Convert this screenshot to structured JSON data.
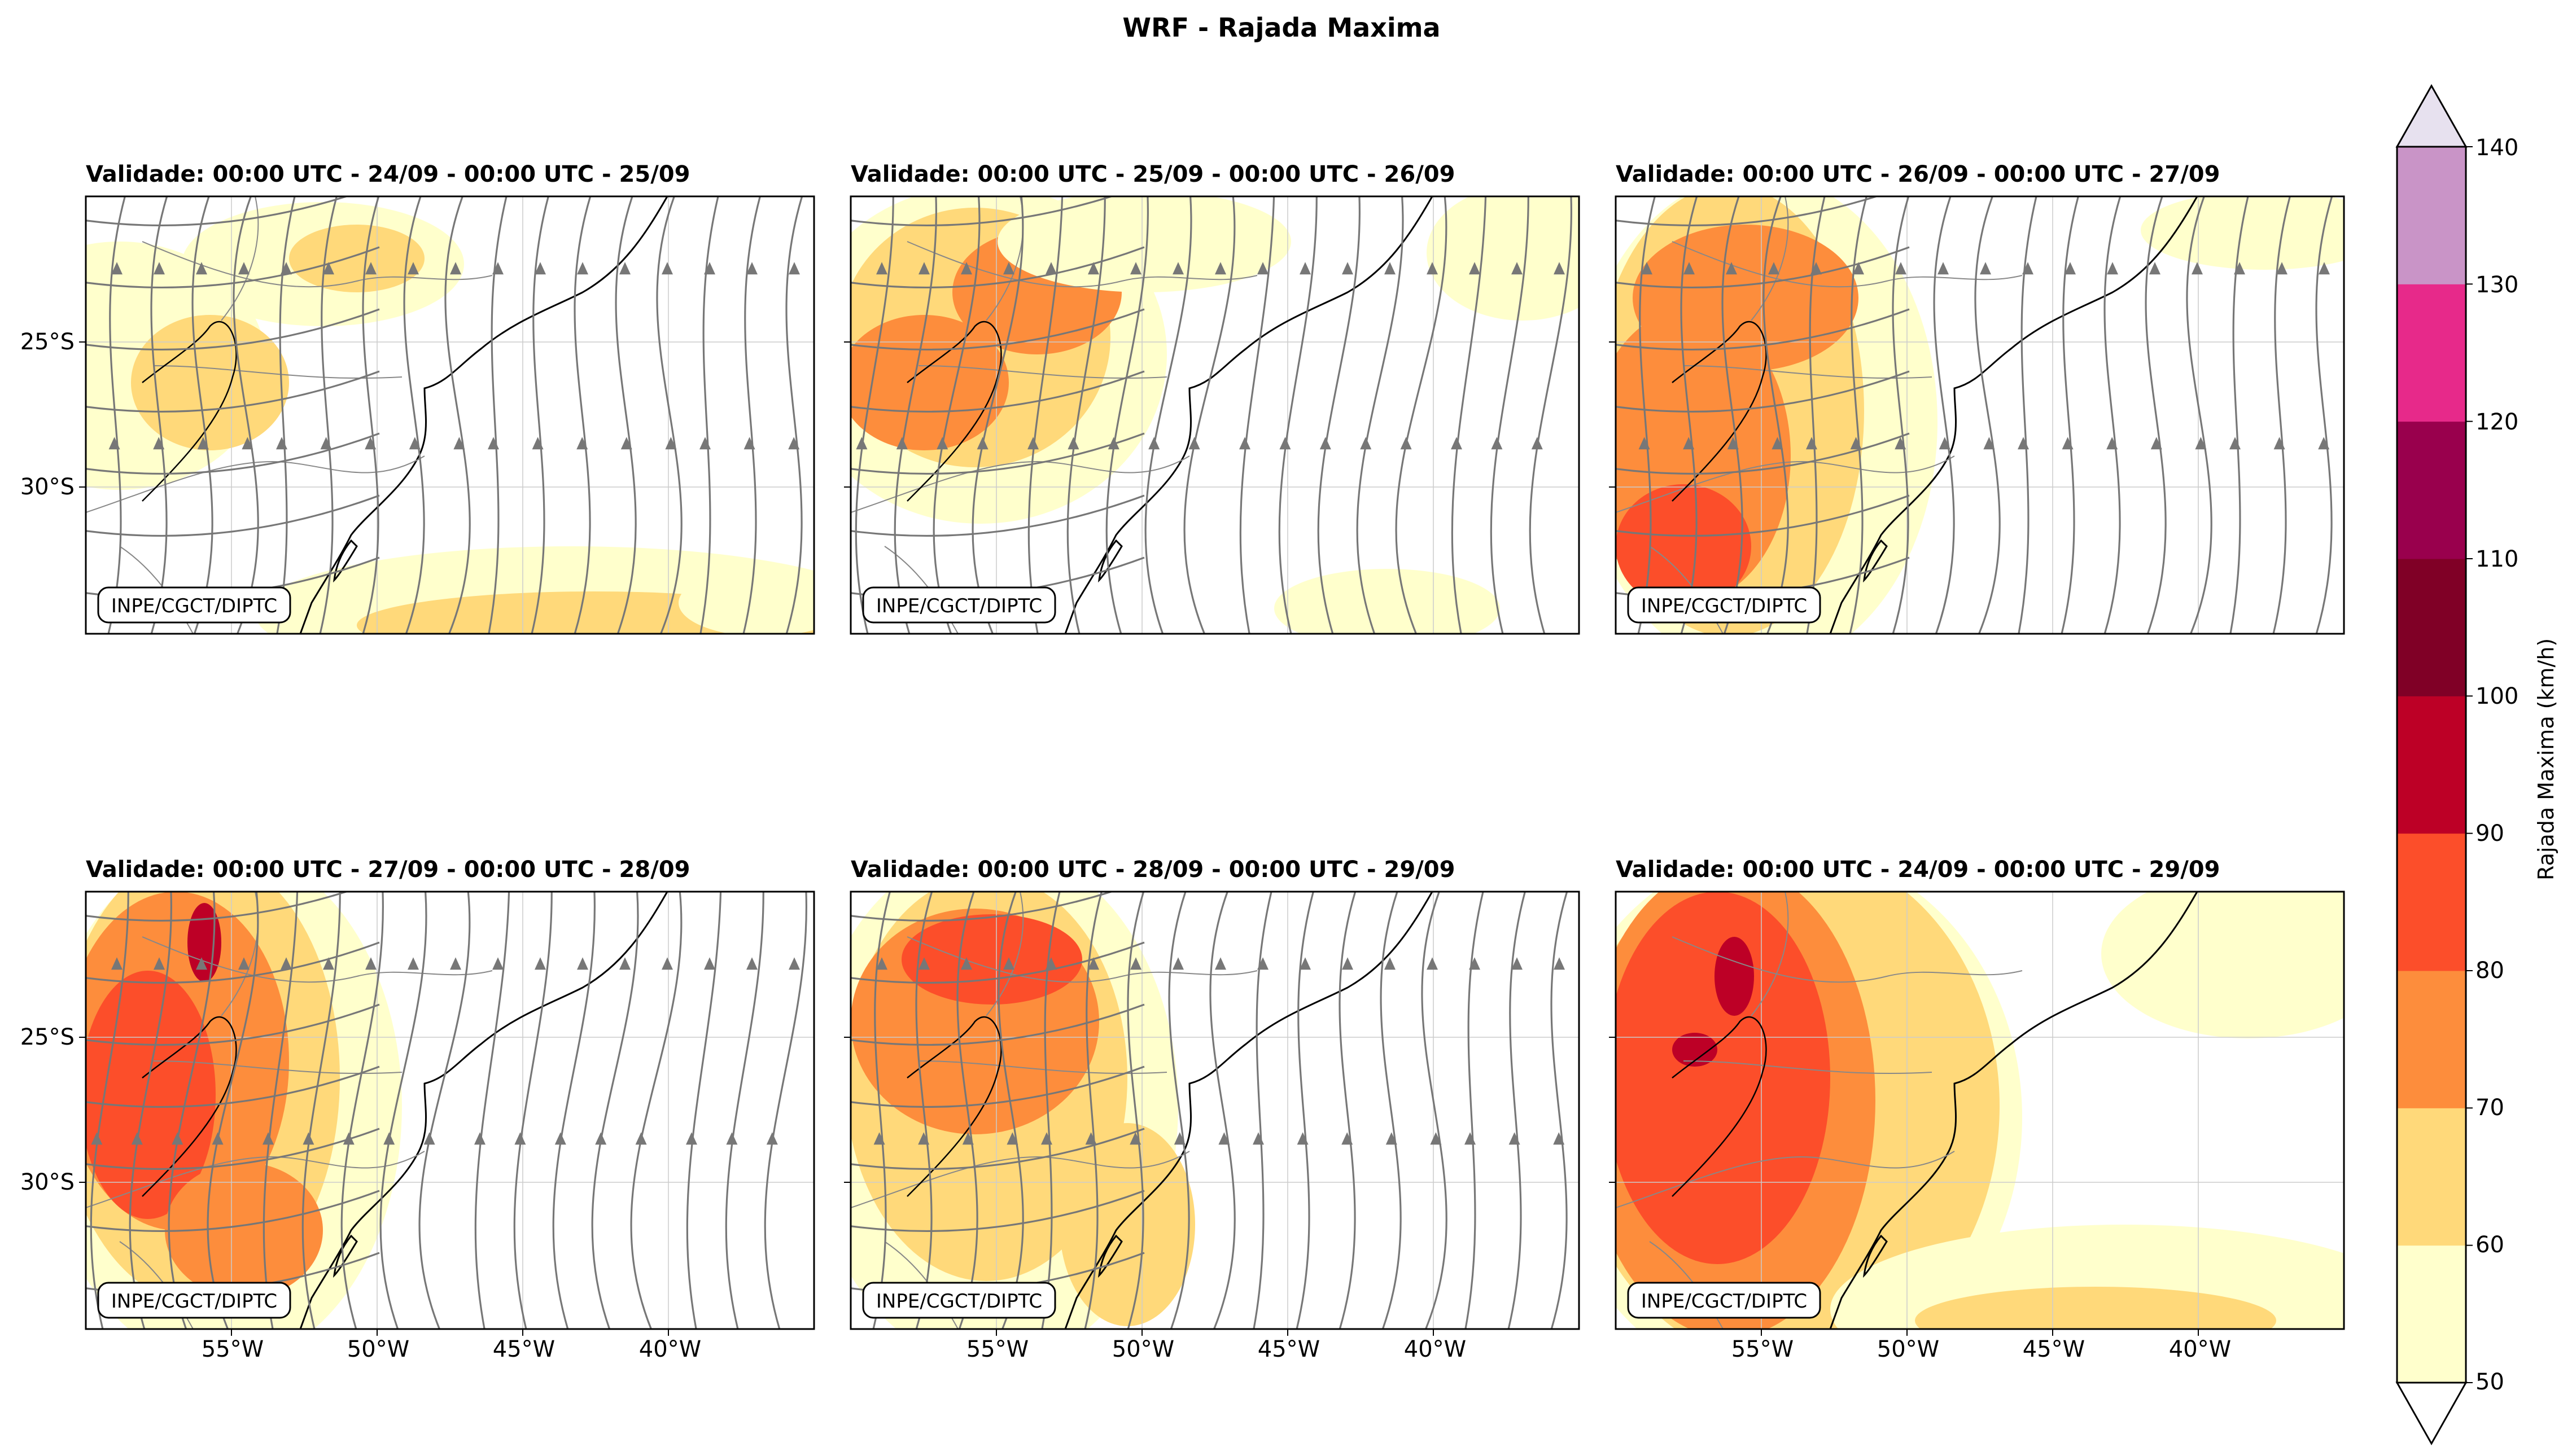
{
  "figure": {
    "title": "WRF - Rajada Maxima"
  },
  "panels": [
    {
      "title": "Validade: 00:00 UTC - 24/09 - 00:00 UTC - 25/09",
      "credit": "INPE/CGCT/DIPTC"
    },
    {
      "title": "Validade: 00:00 UTC - 25/09 - 00:00 UTC - 26/09",
      "credit": "INPE/CGCT/DIPTC"
    },
    {
      "title": "Validade: 00:00 UTC - 26/09 - 00:00 UTC - 27/09",
      "credit": "INPE/CGCT/DIPTC"
    },
    {
      "title": "Validade: 00:00 UTC - 27/09 - 00:00 UTC - 28/09",
      "credit": "INPE/CGCT/DIPTC"
    },
    {
      "title": "Validade: 00:00 UTC - 28/09 - 00:00 UTC - 29/09",
      "credit": "INPE/CGCT/DIPTC"
    },
    {
      "title": "Validade: 00:00 UTC - 24/09 - 00:00 UTC - 29/09",
      "credit": "INPE/CGCT/DIPTC"
    }
  ],
  "axes": {
    "lat_labels": [
      "25°S",
      "30°S"
    ],
    "lon_labels": [
      "55°W",
      "50°W",
      "45°W",
      "40°W"
    ]
  },
  "colorbar": {
    "label": "Rajada Maxima (km/h)",
    "ticks": [
      "50",
      "60",
      "70",
      "80",
      "90",
      "100",
      "110",
      "120",
      "130",
      "140"
    ],
    "levels": [
      50,
      60,
      70,
      80,
      90,
      100,
      110,
      120,
      130,
      140
    ],
    "colors": [
      "#ffffcc",
      "#ffd97a",
      "#fd8d3c",
      "#fc4e2a",
      "#bd0026",
      "#800026",
      "#99004d",
      "#e7298a",
      "#c994c7",
      "#e7e1ef"
    ],
    "under_color": "#ffffff",
    "over_color": "#e7e1ef"
  },
  "style": {
    "streamline_color": "#777777",
    "coast_color": "#000000",
    "border_color": "#888888"
  }
}
